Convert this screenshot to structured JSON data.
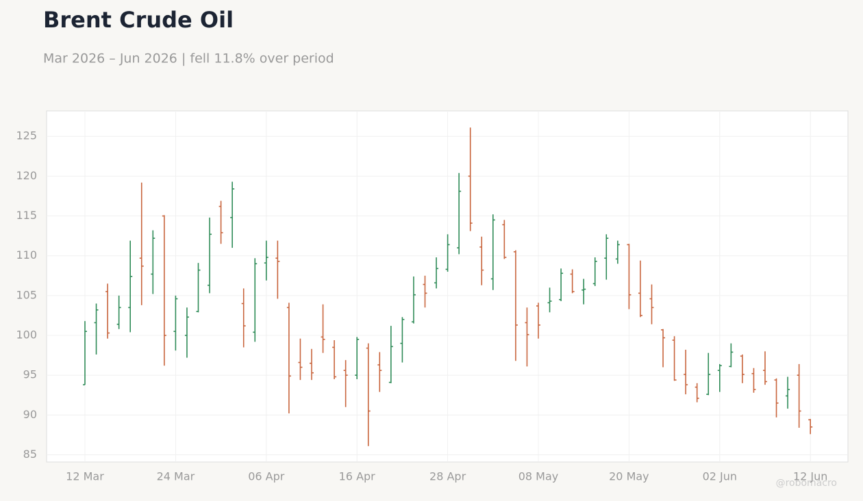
{
  "chart_data": {
    "type": "ohlc",
    "title": "Brent Crude Oil",
    "subtitle": "Mar 2026 – Jun 2026 | fell 11.8% over period",
    "watermark": "@robomacro",
    "up_color": "#2e8b57",
    "down_color": "#c8643c",
    "grid": true,
    "categories": [
      "12 Mar",
      null,
      null,
      null,
      null,
      null,
      null,
      null,
      "24 Mar",
      null,
      null,
      null,
      null,
      null,
      null,
      null,
      "06 Apr",
      null,
      null,
      null,
      null,
      null,
      null,
      null,
      "16 Apr",
      null,
      null,
      null,
      null,
      null,
      null,
      null,
      "28 Apr",
      null,
      null,
      null,
      null,
      null,
      null,
      null,
      "08 May",
      null,
      null,
      null,
      null,
      null,
      null,
      null,
      "20 May",
      null,
      null,
      null,
      null,
      null,
      null,
      null,
      "02 Jun",
      null,
      null,
      null,
      null,
      null,
      null,
      null,
      "12 Jun"
    ],
    "open": [
      93.8,
      101.6,
      105.5,
      101.4,
      103.5,
      109.7,
      107.7,
      115.0,
      100.5,
      100.0,
      103.0,
      106.3,
      116.2,
      114.8,
      104.0,
      100.4,
      109.1,
      109.7,
      103.5,
      96.6,
      96.5,
      99.8,
      98.5,
      95.6,
      95.0,
      98.4,
      96.3,
      94.1,
      99.0,
      101.7,
      106.4,
      106.6,
      108.3,
      111.0,
      120.0,
      111.1,
      107.1,
      113.9,
      110.5,
      101.6,
      103.7,
      104.1,
      104.5,
      107.7,
      105.7,
      106.5,
      109.7,
      109.6,
      111.4,
      105.3,
      104.6,
      100.7,
      99.4,
      95.1,
      93.5,
      92.6,
      95.6,
      96.1,
      97.4,
      95.2,
      95.6,
      94.4,
      92.4,
      95.0,
      89.4
    ],
    "high": [
      101.8,
      104.0,
      106.5,
      105.0,
      111.9,
      119.2,
      113.2,
      115.1,
      105.0,
      103.5,
      109.1,
      114.8,
      116.9,
      119.3,
      105.9,
      109.7,
      111.9,
      111.9,
      104.1,
      99.6,
      98.3,
      103.9,
      99.4,
      96.9,
      99.8,
      99.0,
      97.9,
      101.2,
      102.3,
      107.4,
      107.5,
      109.8,
      112.7,
      120.4,
      126.1,
      112.4,
      115.2,
      114.5,
      110.7,
      103.5,
      104.1,
      106.0,
      108.4,
      108.3,
      107.1,
      109.8,
      112.7,
      111.9,
      111.5,
      109.4,
      106.4,
      100.8,
      99.9,
      98.2,
      94.0,
      97.8,
      96.4,
      99.0,
      97.6,
      95.9,
      98.0,
      94.6,
      94.8,
      96.4,
      89.5
    ],
    "low": [
      93.8,
      97.6,
      99.6,
      100.8,
      100.4,
      103.8,
      105.2,
      96.2,
      98.1,
      97.2,
      102.9,
      105.3,
      111.5,
      111.0,
      98.5,
      99.2,
      106.9,
      104.6,
      90.2,
      94.4,
      94.4,
      97.8,
      94.5,
      91.0,
      94.5,
      86.1,
      92.9,
      94.0,
      96.6,
      101.5,
      103.5,
      105.9,
      108.0,
      110.2,
      113.1,
      106.3,
      105.7,
      109.6,
      96.8,
      96.1,
      99.6,
      102.9,
      104.3,
      105.3,
      103.9,
      106.2,
      107.0,
      109.0,
      103.3,
      102.3,
      101.4,
      96.0,
      94.3,
      92.6,
      91.6,
      92.5,
      92.9,
      96.0,
      94.0,
      92.8,
      93.8,
      89.7,
      90.8,
      88.4,
      87.6
    ],
    "close": [
      100.5,
      103.2,
      100.3,
      103.5,
      107.4,
      108.7,
      112.2,
      100.0,
      104.6,
      102.3,
      108.2,
      112.7,
      112.9,
      118.4,
      101.2,
      109.0,
      109.8,
      109.3,
      94.9,
      96.0,
      95.3,
      99.5,
      94.8,
      95.0,
      99.5,
      90.5,
      95.6,
      98.6,
      102.0,
      105.1,
      105.3,
      108.4,
      111.4,
      118.1,
      114.1,
      108.2,
      114.5,
      109.8,
      101.3,
      100.1,
      101.3,
      104.3,
      107.8,
      105.5,
      105.8,
      109.3,
      112.2,
      111.4,
      105.1,
      102.5,
      103.5,
      99.7,
      94.4,
      93.8,
      92.1,
      95.1,
      96.2,
      97.9,
      95.1,
      93.2,
      94.2,
      91.5,
      93.2,
      90.5,
      88.5
    ],
    "ylim": [
      84.1,
      128.2
    ],
    "yticks": [
      85,
      90,
      95,
      100,
      105,
      110,
      115,
      120,
      125
    ]
  }
}
